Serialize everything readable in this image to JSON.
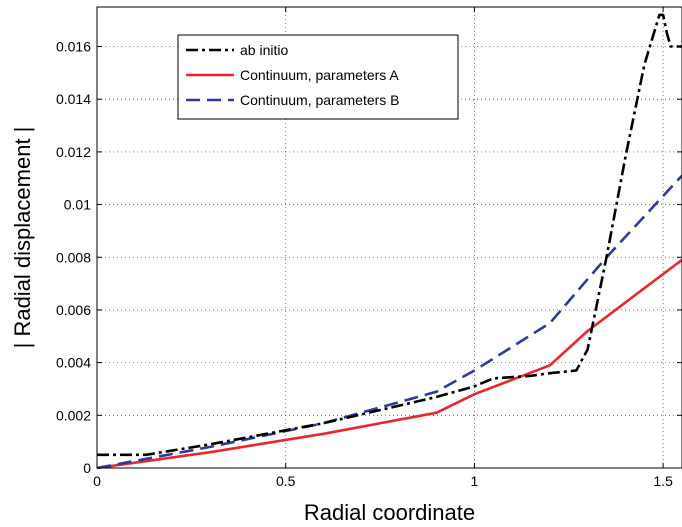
{
  "chart_data": {
    "type": "line",
    "title": "",
    "xlabel": "Radial coordinate",
    "ylabel": "| Radial displacement |",
    "xlim": [
      0,
      1.55
    ],
    "ylim": [
      0,
      0.0175
    ],
    "xticks": [
      0,
      0.5,
      1,
      1.5
    ],
    "xtick_labels": [
      "0",
      "0.5",
      "1",
      "1.5"
    ],
    "yticks": [
      0,
      0.002,
      0.004,
      0.006,
      0.008,
      0.01,
      0.012,
      0.014,
      0.016
    ],
    "ytick_labels": [
      "0",
      "0.002",
      "0.004",
      "0.006",
      "0.008",
      "0.01",
      "0.012",
      "0.014",
      "0.016"
    ],
    "grid": true,
    "legend_position": "top-left",
    "series": [
      {
        "name": "ab initio",
        "color": "#000000",
        "style": "dashdot",
        "x": [
          0,
          0.13,
          0.3,
          0.6,
          0.9,
          1.0,
          1.05,
          1.15,
          1.2,
          1.27,
          1.3,
          1.35,
          1.4,
          1.45,
          1.49,
          1.5,
          1.51,
          1.52,
          1.55
        ],
        "y": [
          0.0005,
          0.0005,
          0.0009,
          0.0017,
          0.0027,
          0.0031,
          0.0034,
          0.0035,
          0.0036,
          0.0037,
          0.0045,
          0.008,
          0.0118,
          0.0153,
          0.0172,
          0.0172,
          0.0165,
          0.016,
          0.016
        ]
      },
      {
        "name": "Continuum, parameters A",
        "color": "#e8262b",
        "style": "solid",
        "x": [
          0,
          0.3,
          0.6,
          0.9,
          1.0,
          1.2,
          1.3,
          1.55
        ],
        "y": [
          0,
          0.0006,
          0.0013,
          0.0021,
          0.0028,
          0.0039,
          0.0052,
          0.0079
        ]
      },
      {
        "name": "Continuum, parameters B",
        "color": "#2b3a9b",
        "style": "dashed",
        "x": [
          0,
          0.3,
          0.6,
          0.9,
          1.0,
          1.2,
          1.35,
          1.55
        ],
        "y": [
          0,
          0.0008,
          0.0017,
          0.0029,
          0.0037,
          0.0055,
          0.008,
          0.0111
        ]
      }
    ]
  }
}
